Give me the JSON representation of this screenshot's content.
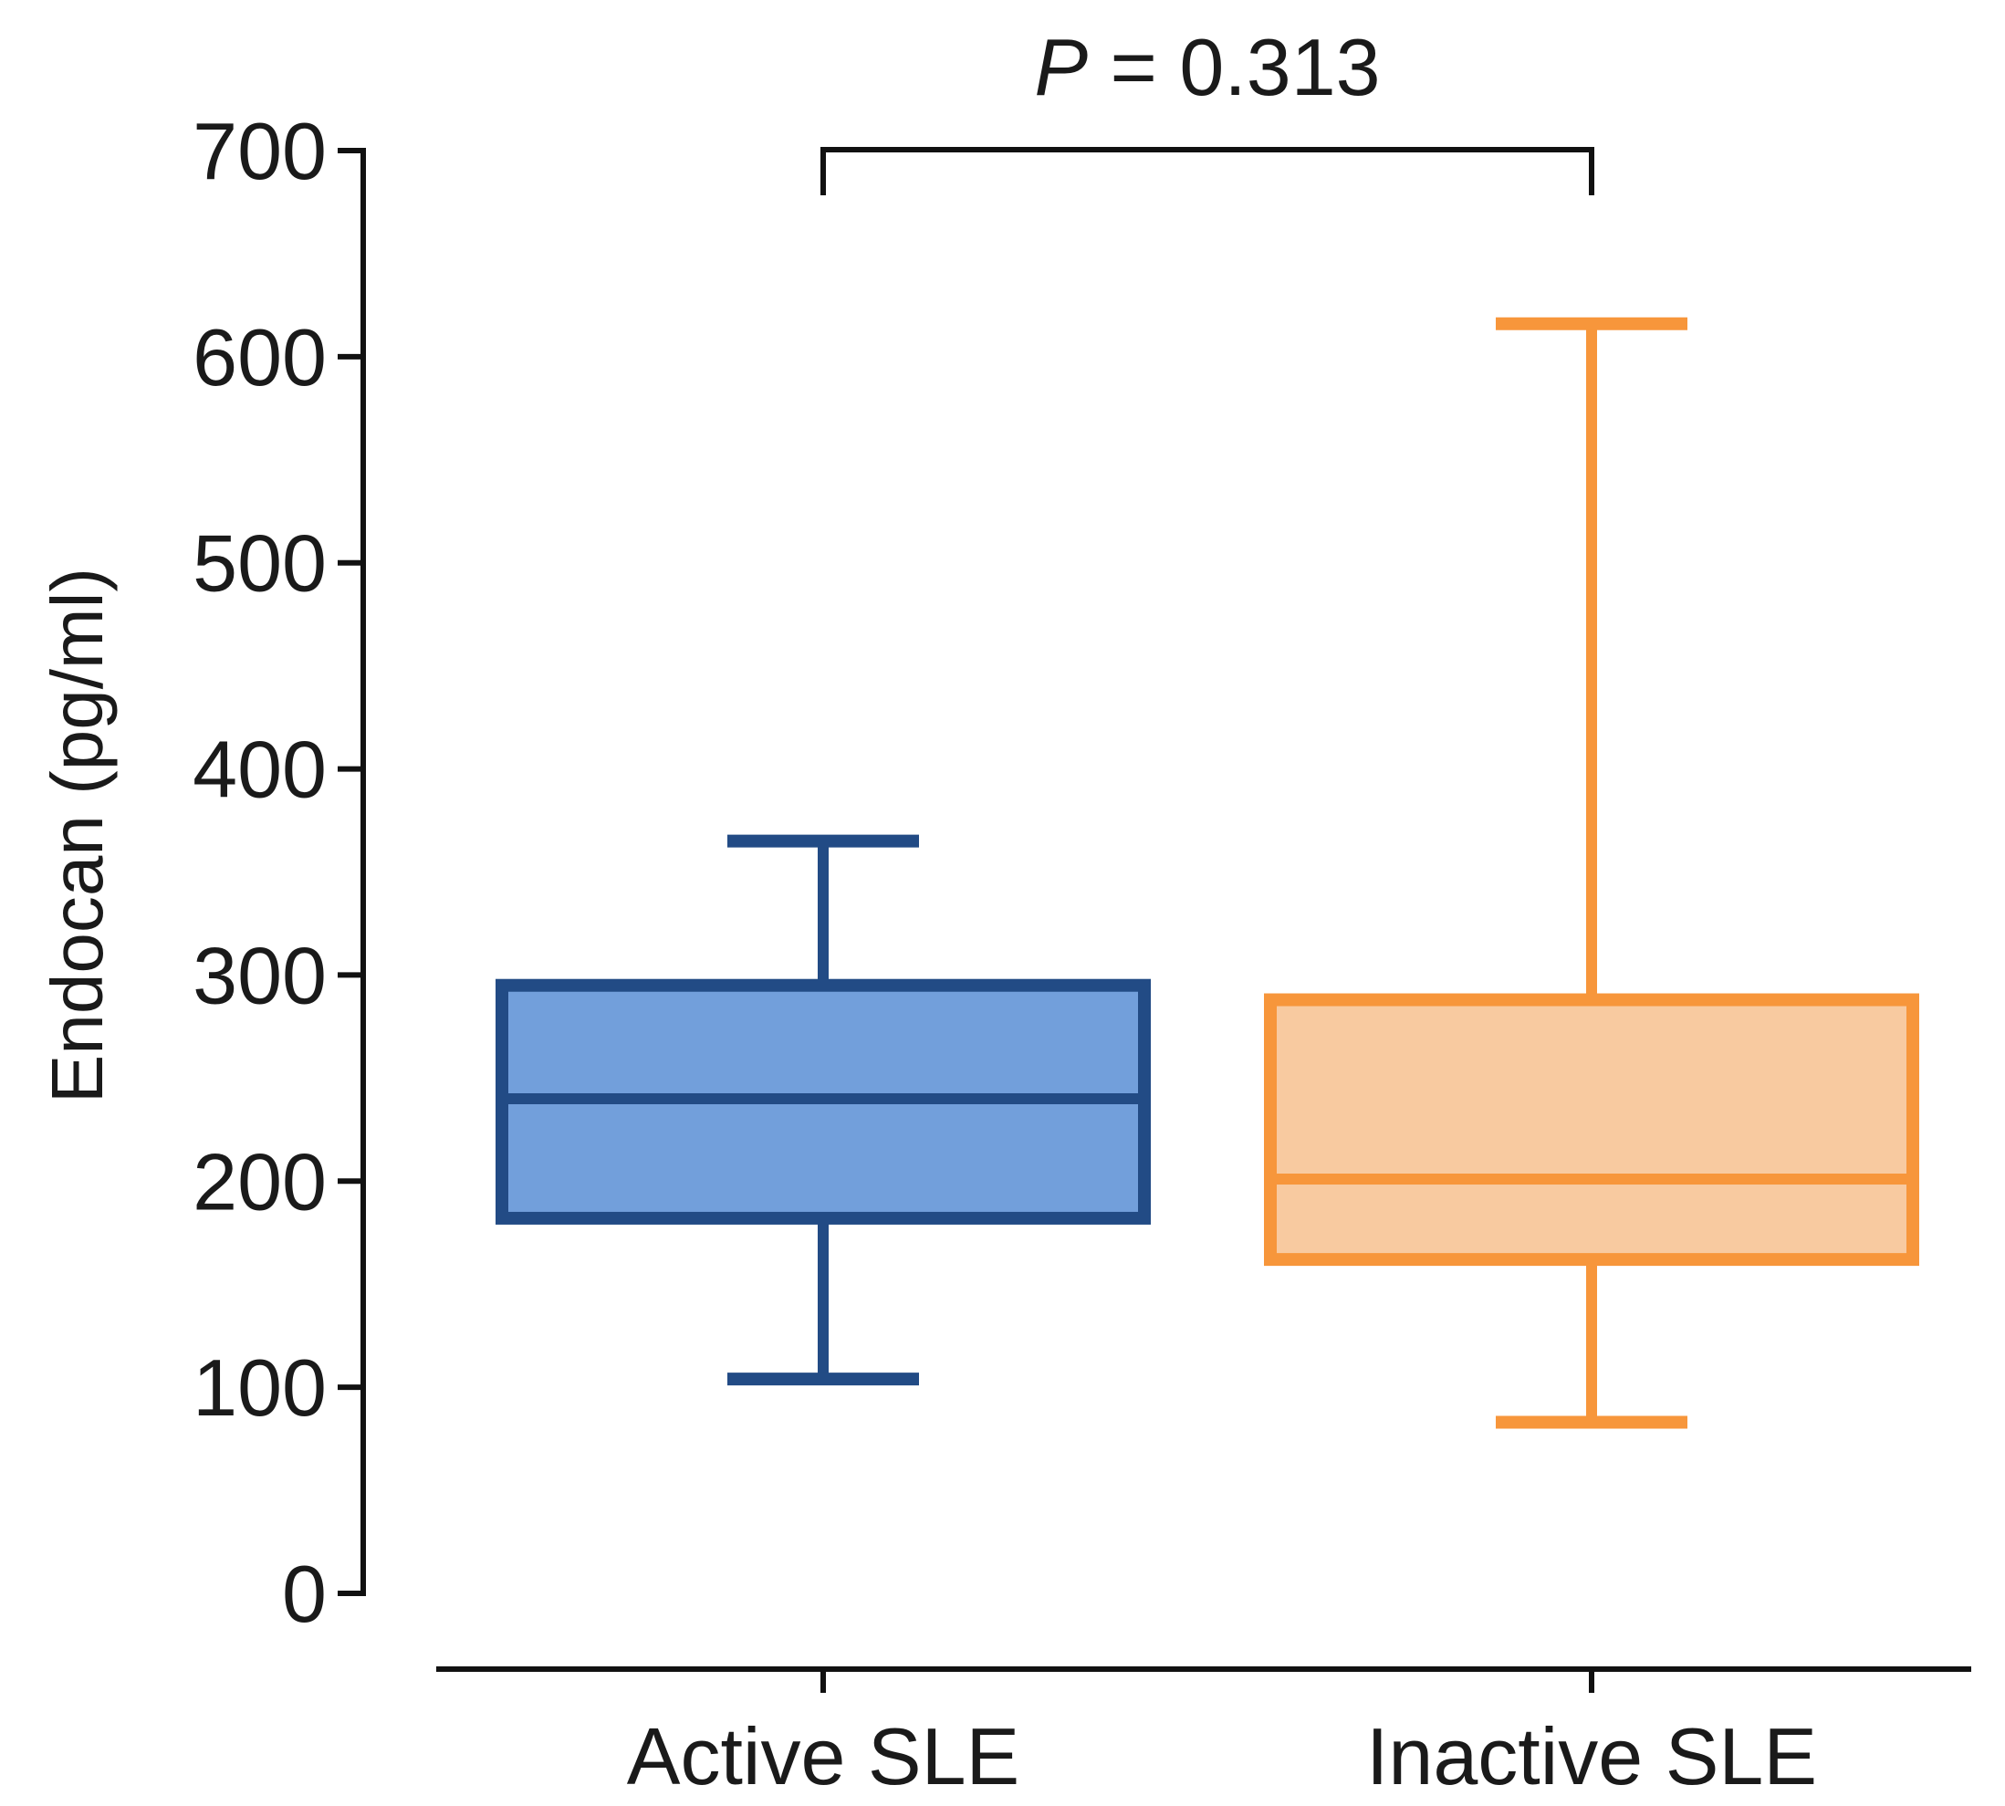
{
  "chart_data": {
    "type": "boxplot",
    "ylabel": "Endocan (pg/ml)",
    "xlabel": "",
    "ylim": [
      0,
      700
    ],
    "yticks": [
      0,
      100,
      200,
      300,
      400,
      500,
      600,
      700
    ],
    "ytick_labels": [
      "0",
      "100",
      "200",
      "300",
      "400",
      "500",
      "600",
      "700"
    ],
    "categories": [
      "Active SLE",
      "Inactive SLE"
    ],
    "series": [
      {
        "name": "Active SLE",
        "min": 104,
        "q1": 182,
        "median": 240,
        "q3": 295,
        "max": 365,
        "fill": "#729fdb",
        "stroke": "#224b85"
      },
      {
        "name": "Inactive SLE",
        "min": 83,
        "q1": 162,
        "median": 201,
        "q3": 288,
        "max": 616,
        "fill": "#f8caa0",
        "stroke": "#f7963b"
      }
    ],
    "annotation": {
      "p_symbol": "P",
      "p_text": " = 0.313",
      "between": [
        "Active SLE",
        "Inactive SLE"
      ]
    }
  }
}
